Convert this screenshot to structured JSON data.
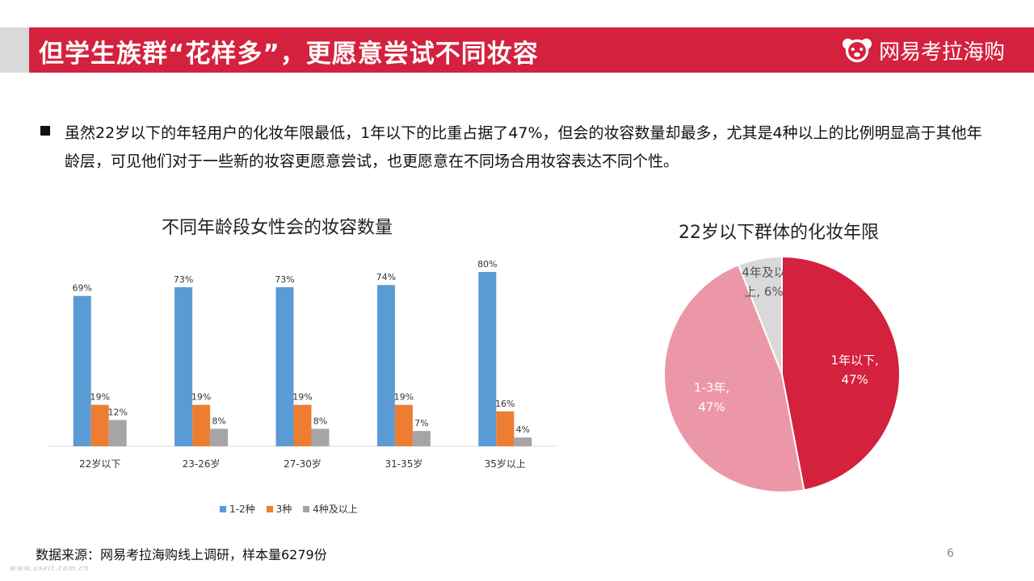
{
  "header": {
    "title": "但学生族群“花样多”，更愿意尝试不同妆容",
    "brand": "网易考拉海购",
    "colors": {
      "bar": "#d4213d",
      "side": "#d9d9d9"
    }
  },
  "bullet": {
    "text": "虽然22岁以下的年轻用户的化妆年限最低，1年以下的比重占据了47%，但会的妆容数量却最多，尤其是4种以上的比例明显高于其他年龄层，可见他们对于一些新的妆容更愿意尝试，也更愿意在不同场合用妆容表达不同个性。"
  },
  "chart_data": [
    {
      "type": "bar",
      "title": "不同年龄段女性会的妆容数量",
      "categories": [
        "22岁以下",
        "23-26岁",
        "27-30岁",
        "31-35岁",
        "35岁以上"
      ],
      "series": [
        {
          "name": "1-2种",
          "values": [
            69,
            73,
            73,
            74,
            80
          ],
          "labels": [
            "69%",
            "73%",
            "73%",
            "74%",
            "80%"
          ],
          "color": "#5b9bd5"
        },
        {
          "name": "3种",
          "values": [
            19,
            19,
            19,
            19,
            16
          ],
          "labels": [
            "19%",
            "19%",
            "19%",
            "19%",
            "16%"
          ],
          "color": "#ed7d31"
        },
        {
          "name": "4种及以上",
          "values": [
            12,
            8,
            8,
            7,
            4
          ],
          "labels": [
            "12%",
            "8%",
            "8%",
            "7%",
            "4%"
          ],
          "color": "#a5a5a5"
        }
      ],
      "ylim": [
        0,
        100
      ],
      "grid": false,
      "legend": "bottom"
    },
    {
      "type": "pie",
      "title": "22岁以下群体的化妆年限",
      "slices": [
        {
          "name": "1年以下",
          "value": 47,
          "label_name": "1年以下,",
          "label_value": "47%",
          "color": "#d4213d"
        },
        {
          "name": "1-3年",
          "value": 47,
          "label_name": "1-3年,",
          "label_value": "47%",
          "color": "#ec97a7"
        },
        {
          "name": "4年及以上",
          "value": 6,
          "label_name": "4年及以",
          "label_value": "上, 6%",
          "color": "#d9d9d9"
        }
      ]
    }
  ],
  "footer": {
    "source": "数据来源：网易考拉海购线上调研，样本量6279份",
    "page": "6",
    "watermark": "www.useit.com.cn"
  }
}
